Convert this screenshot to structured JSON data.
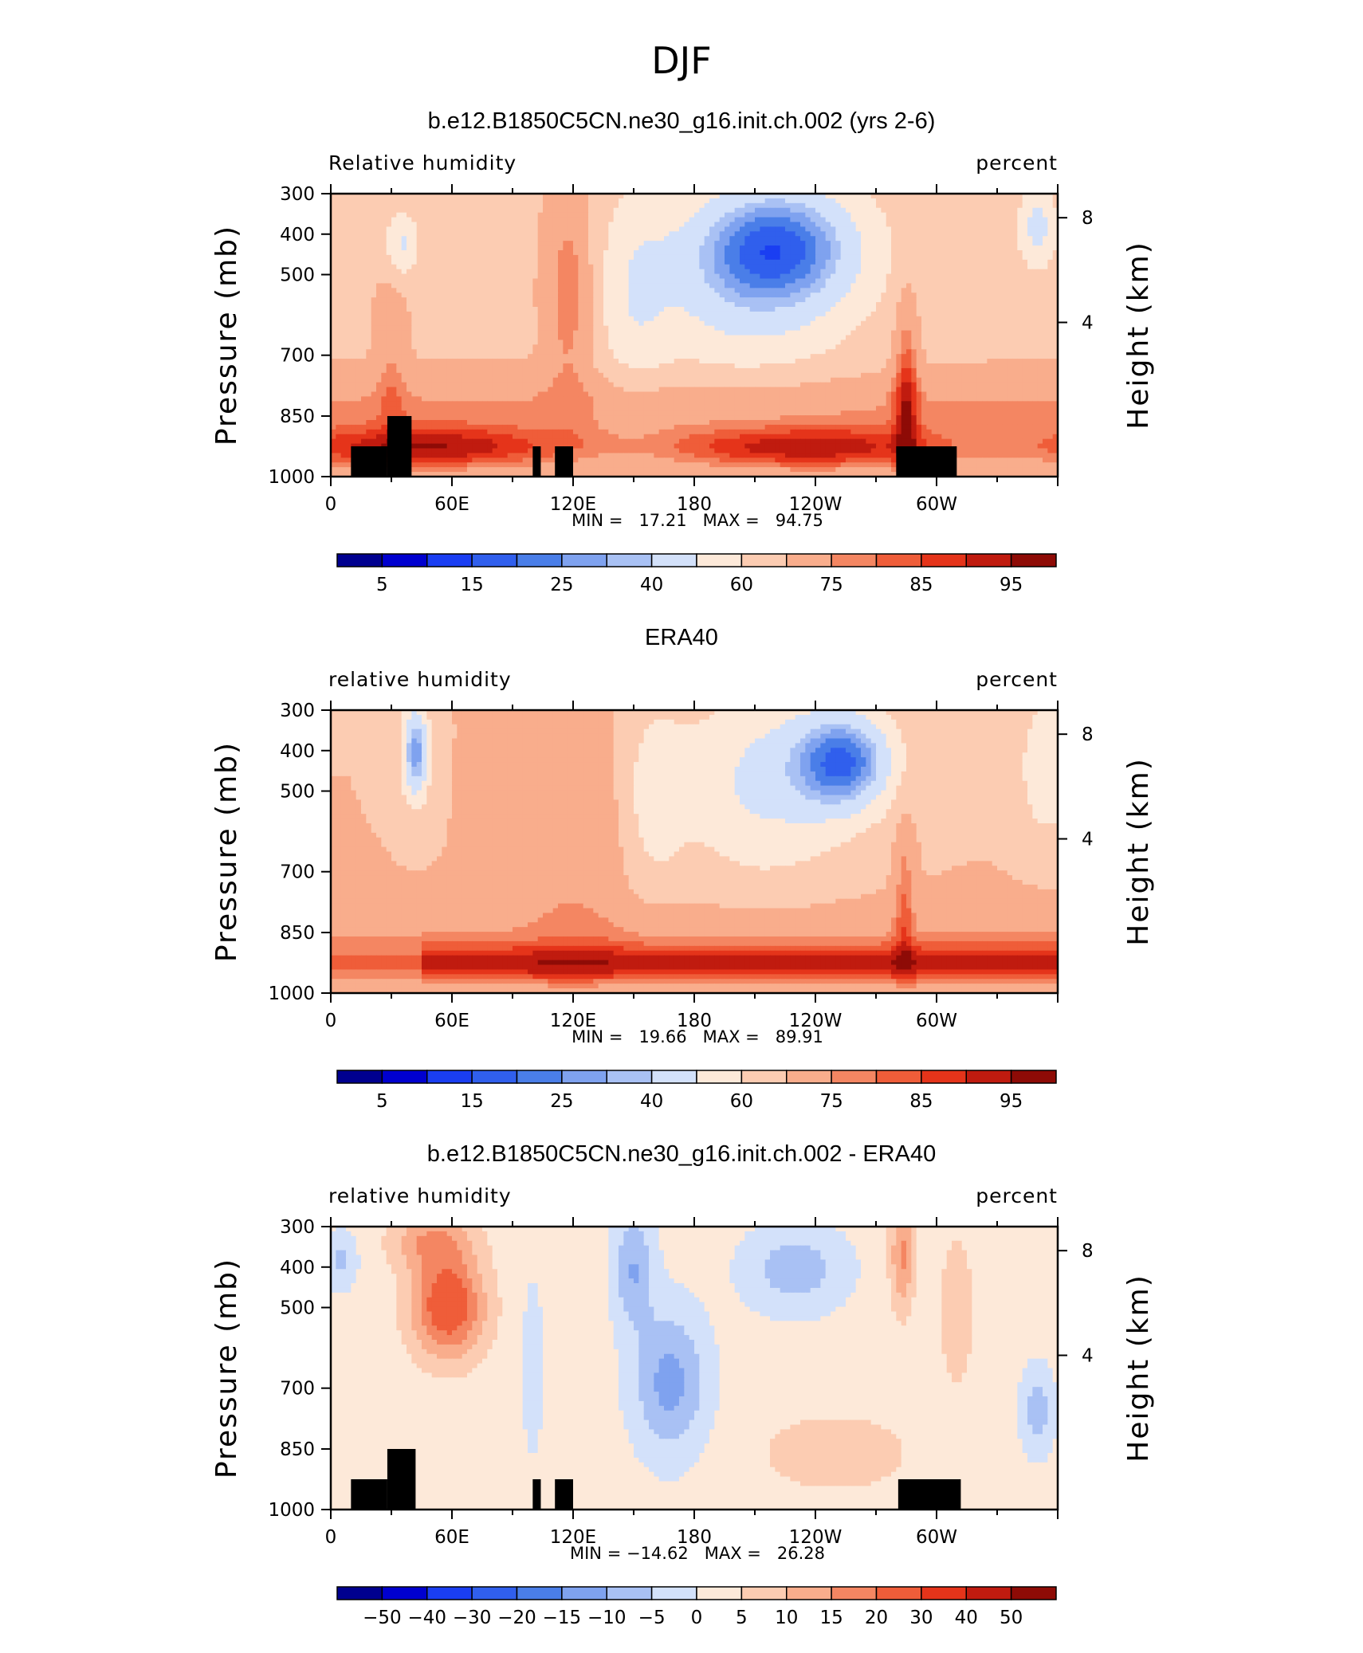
{
  "figure": {
    "season_title": "DJF"
  },
  "colors": {
    "rh_levels": [
      "#00008f",
      "#0000cf",
      "#1a3ef2",
      "#305fed",
      "#4a7ee8",
      "#7fa2ef",
      "#a9c1f4",
      "#d3e1fa",
      "#fde9d9",
      "#fcccb2",
      "#f9ad8c",
      "#f48662",
      "#ef5d39",
      "#e5341a",
      "#c01b0f",
      "#8e0b06"
    ],
    "diff_levels": [
      "#00008f",
      "#0000cf",
      "#1a3ef2",
      "#305fed",
      "#4a7ee8",
      "#7fa2ef",
      "#a9c1f4",
      "#d3e1fa",
      "#fde9d9",
      "#fcccb2",
      "#f9ad8c",
      "#f48662",
      "#ef5d39",
      "#e5341a",
      "#c01b0f",
      "#8e0b06"
    ],
    "topography": "#000000"
  },
  "panels": [
    {
      "title": "b.e12.B1850C5CN.ne30_g16.init.ch.002 (yrs 2-6)",
      "left_label": "Relative humidity",
      "right_label": "percent",
      "stats": "MIN =   17.21   MAX =   94.75",
      "colorbar_labels": [
        "5",
        "15",
        "25",
        "40",
        "60",
        "75",
        "85",
        "95"
      ],
      "chart_data": {
        "type": "heatmap",
        "title": "b.e12.B1850C5CN.ne30_g16.init.ch.002 (yrs 2-6)",
        "variable": "Relative humidity",
        "units": "percent",
        "xlabel": "",
        "ylabel": "Pressure (mb)",
        "y2label": "Height (km)",
        "x_tick_labels": [
          "0",
          "60E",
          "120E",
          "180",
          "120W",
          "60W"
        ],
        "y_tick_labels": [
          "300",
          "400",
          "500",
          "700",
          "850",
          "1000"
        ],
        "y2_tick_labels": [
          "8",
          "4"
        ],
        "min": 17.21,
        "max": 94.75,
        "field_scheme": "model",
        "topography": [
          [
            10,
            28
          ],
          [
            28,
            40
          ],
          [
            100,
            104
          ],
          [
            111,
            120
          ],
          [
            280,
            310
          ]
        ]
      }
    },
    {
      "title": "ERA40",
      "left_label": "relative humidity",
      "right_label": "percent",
      "stats": "MIN =   19.66   MAX =   89.91",
      "colorbar_labels": [
        "5",
        "15",
        "25",
        "40",
        "60",
        "75",
        "85",
        "95"
      ],
      "chart_data": {
        "type": "heatmap",
        "title": "ERA40",
        "variable": "relative humidity",
        "units": "percent",
        "xlabel": "",
        "ylabel": "Pressure (mb)",
        "y2label": "Height (km)",
        "x_tick_labels": [
          "0",
          "60E",
          "120E",
          "180",
          "120W",
          "60W"
        ],
        "y_tick_labels": [
          "300",
          "400",
          "500",
          "700",
          "850",
          "1000"
        ],
        "y2_tick_labels": [
          "8",
          "4"
        ],
        "min": 19.66,
        "max": 89.91,
        "field_scheme": "obs",
        "topography": []
      }
    },
    {
      "title": "b.e12.B1850C5CN.ne30_g16.init.ch.002 - ERA40",
      "left_label": "relative humidity",
      "right_label": "percent",
      "stats": "MIN = −14.62   MAX =   26.28",
      "colorbar_labels": [
        "−50",
        "−40",
        "−30",
        "−20",
        "−15",
        "−10",
        "−5",
        "0",
        "5",
        "10",
        "15",
        "20",
        "30",
        "40",
        "50"
      ],
      "chart_data": {
        "type": "heatmap",
        "title": "b.e12.B1850C5CN.ne30_g16.init.ch.002 - ERA40",
        "variable": "relative humidity",
        "units": "percent",
        "xlabel": "",
        "ylabel": "Pressure (mb)",
        "y2label": "Height (km)",
        "x_tick_labels": [
          "0",
          "60E",
          "120E",
          "180",
          "120W",
          "60W"
        ],
        "y_tick_labels": [
          "300",
          "400",
          "500",
          "700",
          "850",
          "1000"
        ],
        "y2_tick_labels": [
          "8",
          "4"
        ],
        "min": -14.62,
        "max": 26.28,
        "field_scheme": "diff",
        "topography": [
          [
            10,
            28
          ],
          [
            28,
            42
          ],
          [
            100,
            104
          ],
          [
            111,
            120
          ],
          [
            281,
            312
          ]
        ]
      }
    }
  ],
  "axis_titles": {
    "left": "Pressure (mb)",
    "right": "Height (km)"
  }
}
